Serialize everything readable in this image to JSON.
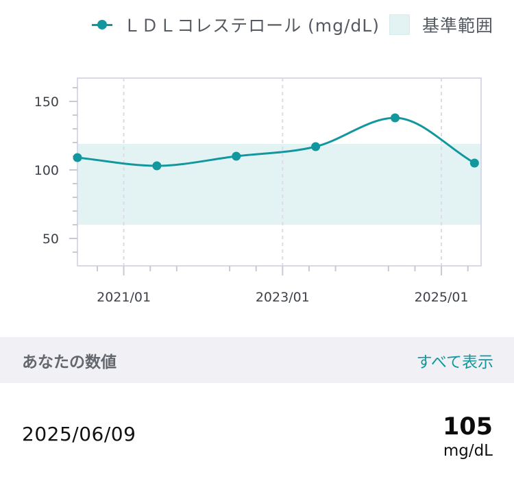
{
  "legend": {
    "series_label": "ＬＤＬコレステロール (mg/dL)",
    "range_label": "基準範囲"
  },
  "colors": {
    "series": "#12979e",
    "range_fill": "#e3f3f4",
    "grid": "#dcdce4",
    "axis_text": "#3d4148"
  },
  "chart_data": {
    "type": "line",
    "series": [
      {
        "name": "ＬＤＬコレステロール (mg/dL)",
        "x": [
          "2020/06",
          "2021/06",
          "2022/06",
          "2023/06",
          "2024/06",
          "2025/06"
        ],
        "values": [
          109,
          103,
          110,
          117,
          138,
          105
        ]
      }
    ],
    "reference_range": {
      "label": "基準範囲",
      "low": 60,
      "high": 119
    },
    "ylim": [
      30,
      167
    ],
    "yticks": [
      50,
      100,
      150
    ],
    "xlim": [
      "2020/06",
      "2025/07"
    ],
    "xticks": [
      "2021/01",
      "2023/01",
      "2025/01"
    ],
    "xgrid": "dashed at labelled ticks",
    "ygrid": false,
    "legend_position": "top-right",
    "smooth": true
  },
  "section": {
    "title": "あなたの数値",
    "show_all": "すべて表示"
  },
  "latest": {
    "date": "2025/06/09",
    "value": "105",
    "unit": "mg/dL"
  }
}
